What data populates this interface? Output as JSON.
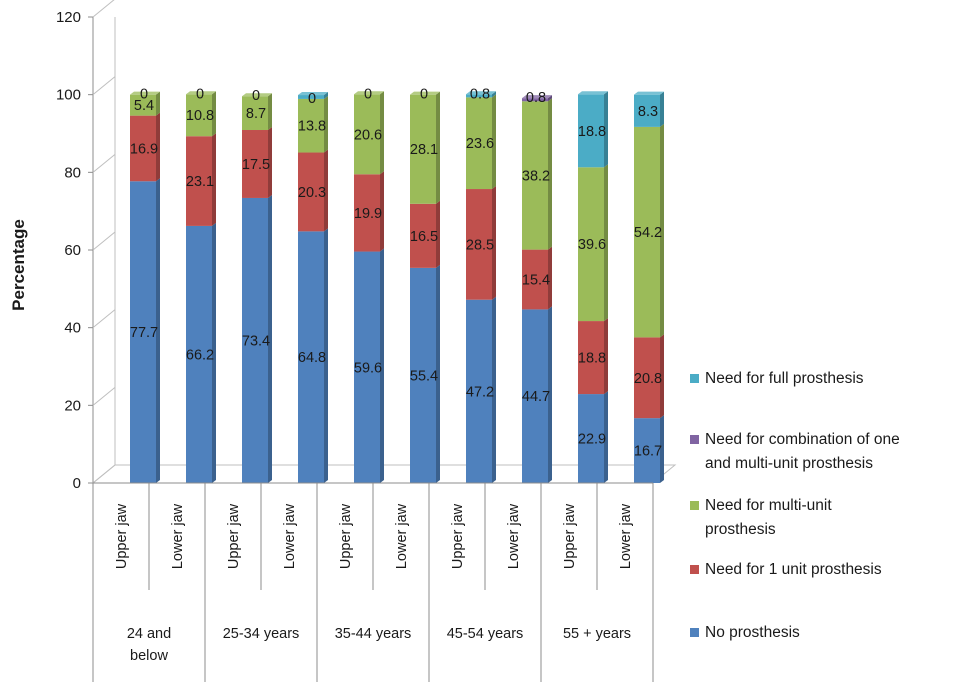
{
  "chart_data": {
    "type": "bar",
    "stacked": true,
    "three_d": true,
    "title": "",
    "ylabel": "Percentage",
    "xlabel": "",
    "ylim": [
      0,
      120
    ],
    "yticks": [
      0,
      20,
      40,
      60,
      80,
      100,
      120
    ],
    "grid": false,
    "legend_position": "right",
    "categories": [
      "Upper jaw",
      "Lower jaw",
      "Upper jaw",
      "Lower jaw",
      "Upper jaw",
      "Lower jaw",
      "Upper jaw",
      "Lower jaw",
      "Upper jaw",
      "Lower jaw"
    ],
    "groups": [
      {
        "label_lines": [
          "24 and",
          "below"
        ]
      },
      {
        "label_lines": [
          "25-34 years"
        ]
      },
      {
        "label_lines": [
          "35-44 years"
        ]
      },
      {
        "label_lines": [
          "45-54 years"
        ]
      },
      {
        "label_lines": [
          "55 + years"
        ]
      }
    ],
    "series": [
      {
        "name": "No prosthesis",
        "color": "#4F81BD",
        "values": [
          77.7,
          66.2,
          73.4,
          64.8,
          59.6,
          55.4,
          47.2,
          44.7,
          22.9,
          16.7
        ]
      },
      {
        "name": "Need for 1 unit prosthesis",
        "color": "#C0504D",
        "values": [
          16.9,
          23.1,
          17.5,
          20.3,
          19.9,
          16.5,
          28.5,
          15.4,
          18.8,
          20.8
        ]
      },
      {
        "name": "Need for multi-unit prosthesis",
        "legend_lines": [
          "Need for multi-unit",
          "prosthesis"
        ],
        "color": "#9BBB59",
        "values": [
          5.4,
          10.8,
          8.7,
          13.8,
          20.6,
          28.1,
          23.6,
          38.2,
          39.6,
          54.2
        ]
      },
      {
        "name": "Need for combination of one and multi-unit prosthesis",
        "legend_lines": [
          "Need for combination of one",
          "and multi-unit prosthesis"
        ],
        "color": "#8064A2",
        "values": [
          0,
          0,
          0,
          0,
          0,
          0,
          0,
          0.8,
          0,
          0
        ],
        "labels": [
          "0",
          "0",
          "0",
          "0",
          "",
          "",
          "",
          "0.8",
          "",
          ""
        ]
      },
      {
        "name": "Need for full prosthesis",
        "color": "#4BACC6",
        "values": [
          0,
          0,
          0,
          1,
          0,
          0,
          0.8,
          0,
          18.8,
          8.3
        ],
        "labels": [
          "",
          "",
          "",
          "",
          "0",
          "0",
          "0.8",
          "",
          "18.8",
          "8.3"
        ]
      }
    ]
  }
}
